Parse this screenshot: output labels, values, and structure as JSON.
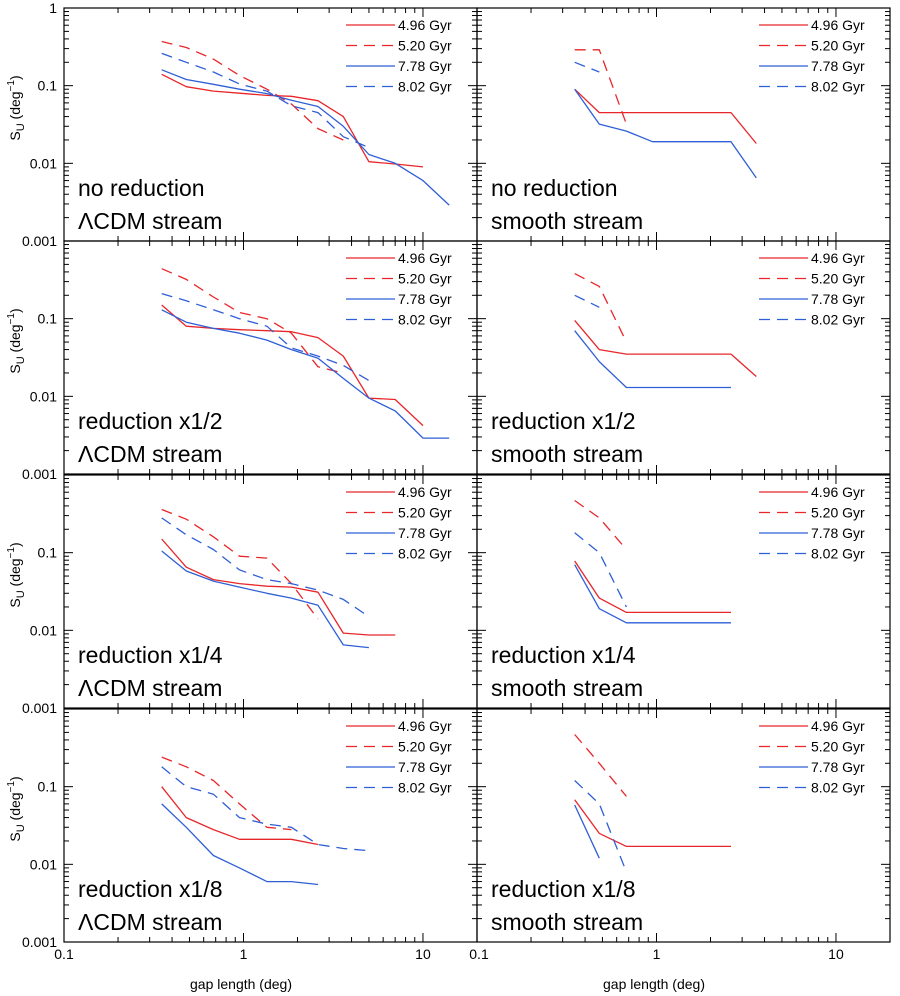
{
  "chart_data": {
    "type": "line",
    "figure": "grid of 4 rows x 2 columns of log-log line plots",
    "xlabel": "gap length (deg)",
    "ylabel": {
      "base": "S",
      "sub": "U",
      "units_open": " (deg",
      "units_sup": "−1",
      "units_close": ")"
    },
    "xscale": "log",
    "yscale": "log",
    "xlim": [
      0.1,
      20
    ],
    "ylim": [
      0.001,
      1
    ],
    "x_ticks": [
      0.1,
      1,
      10
    ],
    "x_tick_labels": [
      "0.1",
      "1",
      "10"
    ],
    "x_tick_label_right": "0.1",
    "y_ticks": [
      0.001,
      0.01,
      0.1,
      1
    ],
    "y_tick_labels": [
      "0.001",
      "0.01",
      "0.1",
      "1"
    ],
    "series_styles": [
      {
        "name": "4.96 Gyr",
        "color": "#e8262a",
        "dash": "solid"
      },
      {
        "name": "5.20 Gyr",
        "color": "#e8262a",
        "dash": "dashed"
      },
      {
        "name": "7.78 Gyr",
        "color": "#2f5fd6",
        "dash": "solid"
      },
      {
        "name": "8.02 Gyr",
        "color": "#2f5fd6",
        "dash": "dashed"
      }
    ],
    "panels": [
      {
        "row": 0,
        "col": 0,
        "label_line1": "no reduction",
        "label_line2_rest": "CDM stream",
        "label_line2_greek": "Λ",
        "series": [
          {
            "name": "4.96 Gyr",
            "x": [
              0.35,
              0.48,
              0.68,
              0.95,
              1.35,
              1.85,
              2.6,
              3.6,
              5.0,
              7.0,
              10.0
            ],
            "y": [
              0.14,
              0.097,
              0.085,
              0.08,
              0.075,
              0.073,
              0.064,
              0.04,
              0.0105,
              0.0098,
              0.009
            ]
          },
          {
            "name": "5.20 Gyr",
            "x": [
              0.35,
              0.48,
              0.68,
              0.95,
              1.35,
              1.85,
              2.6,
              3.6
            ],
            "y": [
              0.37,
              0.31,
              0.22,
              0.135,
              0.09,
              0.058,
              0.028,
              0.02
            ]
          },
          {
            "name": "7.78 Gyr",
            "x": [
              0.35,
              0.48,
              0.68,
              0.95,
              1.35,
              1.85,
              2.6,
              3.6,
              5.0,
              7.0,
              10.0,
              14.0
            ],
            "y": [
              0.16,
              0.12,
              0.104,
              0.09,
              0.079,
              0.065,
              0.054,
              0.03,
              0.013,
              0.01,
              0.006,
              0.0029
            ]
          },
          {
            "name": "8.02 Gyr",
            "x": [
              0.35,
              0.48,
              0.68,
              0.95,
              1.35,
              1.85,
              2.6,
              3.6,
              5.0
            ],
            "y": [
              0.26,
              0.2,
              0.15,
              0.105,
              0.085,
              0.055,
              0.045,
              0.022,
              0.016
            ]
          }
        ]
      },
      {
        "row": 0,
        "col": 1,
        "label_line1": "no reduction",
        "label_line2_rest": "smooth stream",
        "label_line2_greek": "",
        "series": [
          {
            "name": "4.96 Gyr",
            "x": [
              0.35,
              0.48,
              0.95,
              2.6,
              3.6
            ],
            "y": [
              0.09,
              0.045,
              0.045,
              0.045,
              0.018
            ]
          },
          {
            "name": "5.20 Gyr",
            "x": [
              0.35,
              0.48,
              0.68
            ],
            "y": [
              0.29,
              0.29,
              0.032
            ]
          },
          {
            "name": "7.78 Gyr",
            "x": [
              0.35,
              0.48,
              0.68,
              0.95,
              2.6,
              3.6
            ],
            "y": [
              0.09,
              0.032,
              0.026,
              0.019,
              0.019,
              0.0065
            ]
          },
          {
            "name": "8.02 Gyr",
            "x": [
              0.35,
              0.48
            ],
            "y": [
              0.2,
              0.15
            ]
          }
        ]
      },
      {
        "row": 1,
        "col": 0,
        "label_line1": "reduction x1/2",
        "label_line2_rest": "CDM stream",
        "label_line2_greek": "Λ",
        "series": [
          {
            "name": "4.96 Gyr",
            "x": [
              0.35,
              0.48,
              0.68,
              0.95,
              1.35,
              1.85,
              2.6,
              3.6,
              5.0,
              7.0,
              10.0
            ],
            "y": [
              0.15,
              0.08,
              0.075,
              0.072,
              0.07,
              0.068,
              0.057,
              0.033,
              0.0095,
              0.0091,
              0.0042
            ]
          },
          {
            "name": "5.20 Gyr",
            "x": [
              0.35,
              0.48,
              0.68,
              0.95,
              1.35,
              1.85,
              2.6,
              3.6
            ],
            "y": [
              0.44,
              0.32,
              0.19,
              0.12,
              0.1,
              0.065,
              0.024,
              0.02
            ]
          },
          {
            "name": "7.78 Gyr",
            "x": [
              0.35,
              0.48,
              0.68,
              0.95,
              1.35,
              1.85,
              2.6,
              3.6,
              5.0,
              7.0,
              10.0,
              14.0
            ],
            "y": [
              0.13,
              0.09,
              0.075,
              0.065,
              0.053,
              0.04,
              0.031,
              0.017,
              0.0095,
              0.0065,
              0.0029,
              0.0029
            ]
          },
          {
            "name": "8.02 Gyr",
            "x": [
              0.35,
              0.48,
              0.68,
              0.95,
              1.35,
              1.85,
              2.6,
              3.6,
              5.0
            ],
            "y": [
              0.21,
              0.17,
              0.13,
              0.1,
              0.08,
              0.042,
              0.033,
              0.025,
              0.016
            ]
          }
        ]
      },
      {
        "row": 1,
        "col": 1,
        "label_line1": "reduction x1/2",
        "label_line2_rest": "smooth stream",
        "label_line2_greek": "",
        "series": [
          {
            "name": "4.96 Gyr",
            "x": [
              0.35,
              0.48,
              0.68,
              2.6,
              3.6
            ],
            "y": [
              0.095,
              0.04,
              0.035,
              0.035,
              0.018
            ]
          },
          {
            "name": "5.20 Gyr",
            "x": [
              0.35,
              0.48,
              0.68
            ],
            "y": [
              0.38,
              0.26,
              0.05
            ]
          },
          {
            "name": "7.78 Gyr",
            "x": [
              0.35,
              0.48,
              0.68,
              2.6
            ],
            "y": [
              0.07,
              0.028,
              0.013,
              0.013
            ]
          },
          {
            "name": "8.02 Gyr",
            "x": [
              0.35,
              0.48
            ],
            "y": [
              0.2,
              0.14
            ]
          }
        ]
      },
      {
        "row": 2,
        "col": 0,
        "label_line1": "reduction x1/4",
        "label_line2_rest": "CDM stream",
        "label_line2_greek": "Λ",
        "series": [
          {
            "name": "4.96 Gyr",
            "x": [
              0.35,
              0.48,
              0.68,
              0.95,
              1.35,
              1.85,
              2.6,
              3.6,
              5.0,
              7.0
            ],
            "y": [
              0.15,
              0.065,
              0.045,
              0.04,
              0.037,
              0.036,
              0.031,
              0.0092,
              0.0087,
              0.0087
            ]
          },
          {
            "name": "5.20 Gyr",
            "x": [
              0.35,
              0.48,
              0.68,
              0.95,
              1.35,
              1.85,
              2.6
            ],
            "y": [
              0.36,
              0.27,
              0.16,
              0.09,
              0.085,
              0.04,
              0.014
            ]
          },
          {
            "name": "7.78 Gyr",
            "x": [
              0.35,
              0.48,
              0.68,
              0.95,
              1.35,
              1.85,
              2.6,
              3.6,
              5.0
            ],
            "y": [
              0.105,
              0.058,
              0.043,
              0.036,
              0.03,
              0.026,
              0.021,
              0.0065,
              0.006
            ]
          },
          {
            "name": "8.02 Gyr",
            "x": [
              0.35,
              0.48,
              0.68,
              0.95,
              1.35,
              1.85,
              2.6,
              3.6,
              5.0
            ],
            "y": [
              0.28,
              0.17,
              0.11,
              0.06,
              0.045,
              0.04,
              0.033,
              0.025,
              0.015
            ]
          }
        ]
      },
      {
        "row": 2,
        "col": 1,
        "label_line1": "reduction x1/4",
        "label_line2_rest": "smooth stream",
        "label_line2_greek": "",
        "series": [
          {
            "name": "4.96 Gyr",
            "x": [
              0.35,
              0.48,
              0.68,
              2.6
            ],
            "y": [
              0.078,
              0.026,
              0.017,
              0.017
            ]
          },
          {
            "name": "5.20 Gyr",
            "x": [
              0.35,
              0.48,
              0.68
            ],
            "y": [
              0.47,
              0.28,
              0.11
            ]
          },
          {
            "name": "7.78 Gyr",
            "x": [
              0.35,
              0.48,
              0.68,
              2.6
            ],
            "y": [
              0.07,
              0.019,
              0.0125,
              0.0125
            ]
          },
          {
            "name": "8.02 Gyr",
            "x": [
              0.35,
              0.48,
              0.68
            ],
            "y": [
              0.18,
              0.1,
              0.02
            ]
          }
        ]
      },
      {
        "row": 3,
        "col": 0,
        "label_line1": "reduction x1/8",
        "label_line2_rest": "CDM stream",
        "label_line2_greek": "Λ",
        "series": [
          {
            "name": "4.96 Gyr",
            "x": [
              0.35,
              0.48,
              0.68,
              0.95,
              1.35,
              1.85,
              2.6
            ],
            "y": [
              0.1,
              0.04,
              0.028,
              0.021,
              0.021,
              0.021,
              0.018
            ]
          },
          {
            "name": "5.20 Gyr",
            "x": [
              0.35,
              0.48,
              0.68,
              0.95,
              1.35,
              1.85
            ],
            "y": [
              0.24,
              0.18,
              0.12,
              0.06,
              0.03,
              0.028
            ]
          },
          {
            "name": "7.78 Gyr",
            "x": [
              0.35,
              0.48,
              0.68,
              0.95,
              1.35,
              1.85,
              2.6
            ],
            "y": [
              0.06,
              0.03,
              0.013,
              0.009,
              0.006,
              0.006,
              0.0055
            ]
          },
          {
            "name": "8.02 Gyr",
            "x": [
              0.35,
              0.48,
              0.68,
              0.95,
              1.35,
              1.85,
              2.6,
              3.6,
              5.0
            ],
            "y": [
              0.18,
              0.1,
              0.08,
              0.04,
              0.033,
              0.03,
              0.018,
              0.016,
              0.015
            ]
          }
        ]
      },
      {
        "row": 3,
        "col": 1,
        "label_line1": "reduction x1/8",
        "label_line2_rest": "smooth stream",
        "label_line2_greek": "",
        "series": [
          {
            "name": "4.96 Gyr",
            "x": [
              0.35,
              0.48,
              0.68,
              2.6
            ],
            "y": [
              0.068,
              0.025,
              0.017,
              0.017
            ]
          },
          {
            "name": "5.20 Gyr",
            "x": [
              0.35,
              0.48,
              0.68
            ],
            "y": [
              0.47,
              0.2,
              0.075
            ]
          },
          {
            "name": "7.78 Gyr",
            "x": [
              0.35,
              0.48
            ],
            "y": [
              0.058,
              0.012
            ]
          },
          {
            "name": "8.02 Gyr",
            "x": [
              0.35,
              0.48,
              0.68
            ],
            "y": [
              0.12,
              0.06,
              0.008
            ]
          }
        ]
      }
    ]
  }
}
